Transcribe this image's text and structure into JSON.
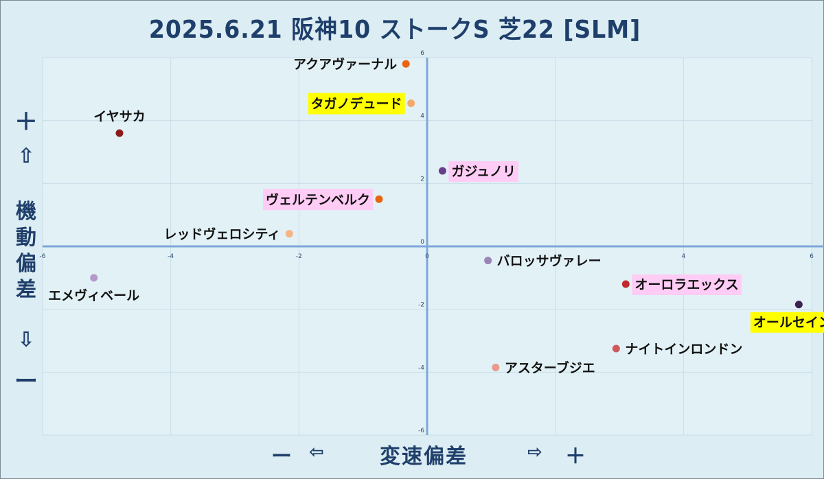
{
  "title": "2025.6.21 阪神10 ストークS 芝22 [SLM]",
  "y_axis": {
    "plus": "＋",
    "up_arrow": "⇧",
    "label_lines": [
      "機",
      "動",
      "偏",
      "差"
    ],
    "down_arrow": "⇩",
    "minus": "ー"
  },
  "x_axis": {
    "minus": "ー",
    "left_arrow": "⇦",
    "label": "変速偏差",
    "right_arrow": "⇨",
    "plus": "＋"
  },
  "colors": {
    "background": "#dcedf3",
    "axis": "#7ea7d8",
    "grid": "#c9dde8",
    "title": "#1f3f6b",
    "highlight_yellow": "#ffff00",
    "highlight_pink": "#ffccf5"
  },
  "chart_data": {
    "type": "scatter",
    "title": "2025.6.21 阪神10 ストークS 芝22 [SLM]",
    "xlabel": "変速偏差",
    "ylabel": "機動偏差",
    "xlim": [
      -6,
      6
    ],
    "ylim": [
      -6,
      6
    ],
    "xticks": [
      -6,
      -4,
      -2,
      0,
      4,
      6
    ],
    "yticks": [
      6,
      4,
      2,
      0,
      -2,
      -4,
      -6
    ],
    "grid": true,
    "points": [
      {
        "name": "アクアヴァーナル",
        "x": -0.33,
        "y": 5.8,
        "color": "#e8650e",
        "highlight": "none",
        "label_side": "left"
      },
      {
        "name": "タガノデュード",
        "x": -0.25,
        "y": 4.55,
        "color": "#f4a86a",
        "highlight": "yellow",
        "label_side": "left"
      },
      {
        "name": "イヤサカ",
        "x": -4.8,
        "y": 3.6,
        "color": "#8b1a1a",
        "highlight": "none",
        "label_side": "above"
      },
      {
        "name": "ガジュノリ",
        "x": 0.24,
        "y": 2.4,
        "color": "#6a3f8a",
        "highlight": "pink",
        "label_side": "right"
      },
      {
        "name": "ヴェルテンベルク",
        "x": -0.75,
        "y": 1.5,
        "color": "#e8650e",
        "highlight": "pink",
        "label_side": "left"
      },
      {
        "name": "レッドヴェロシティ",
        "x": -2.15,
        "y": 0.4,
        "color": "#f4b483",
        "highlight": "none",
        "label_side": "left"
      },
      {
        "name": "エメヴィベール",
        "x": -5.2,
        "y": -1.0,
        "color": "#b49ac8",
        "highlight": "none",
        "label_side": "below"
      },
      {
        "name": "バロッサヴァレー",
        "x": 0.95,
        "y": -0.45,
        "color": "#9a84b5",
        "highlight": "none",
        "label_side": "right"
      },
      {
        "name": "オーロラエックス",
        "x": 3.1,
        "y": -1.2,
        "color": "#c0282d",
        "highlight": "pink",
        "label_side": "right"
      },
      {
        "name": "オールセインツ",
        "x": 5.8,
        "y": -1.85,
        "color": "#3d2352",
        "highlight": "yellow",
        "label_side": "below"
      },
      {
        "name": "ナイトインロンドン",
        "x": 2.95,
        "y": -3.25,
        "color": "#d05a5a",
        "highlight": "none",
        "label_side": "right"
      },
      {
        "name": "アスターブジエ",
        "x": 1.07,
        "y": -3.85,
        "color": "#e89a8c",
        "highlight": "none",
        "label_side": "right"
      }
    ]
  }
}
